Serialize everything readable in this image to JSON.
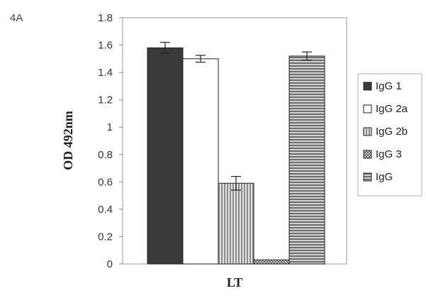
{
  "panel_label": "4A",
  "chart_data": {
    "type": "bar",
    "title": "",
    "xlabel": "LT",
    "ylabel": "OD 492nm",
    "ylim": [
      0,
      1.8
    ],
    "yticks": [
      "0",
      "0.2",
      "0.4",
      "0.6",
      "0.8",
      "1",
      "1.2",
      "1.4",
      "1.6",
      "1.8"
    ],
    "grid": false,
    "legend_position": "right",
    "series": [
      {
        "name": "IgG 1",
        "value": 1.58,
        "error": 0.04,
        "color": "#3a3a3a",
        "pattern": "dark"
      },
      {
        "name": "IgG 2a",
        "value": 1.5,
        "error": 0.025,
        "color": "#ffffff",
        "pattern": "white"
      },
      {
        "name": "IgG 2b",
        "value": 0.59,
        "error": 0.05,
        "color": "#bdbdbd",
        "pattern": "vstripe"
      },
      {
        "name": "IgG 3",
        "value": 0.03,
        "error": 0.0,
        "color": "#9a9a9a",
        "pattern": "check"
      },
      {
        "name": "IgG",
        "value": 1.52,
        "error": 0.03,
        "color": "#9e9e9e",
        "pattern": "hstripe"
      }
    ]
  }
}
